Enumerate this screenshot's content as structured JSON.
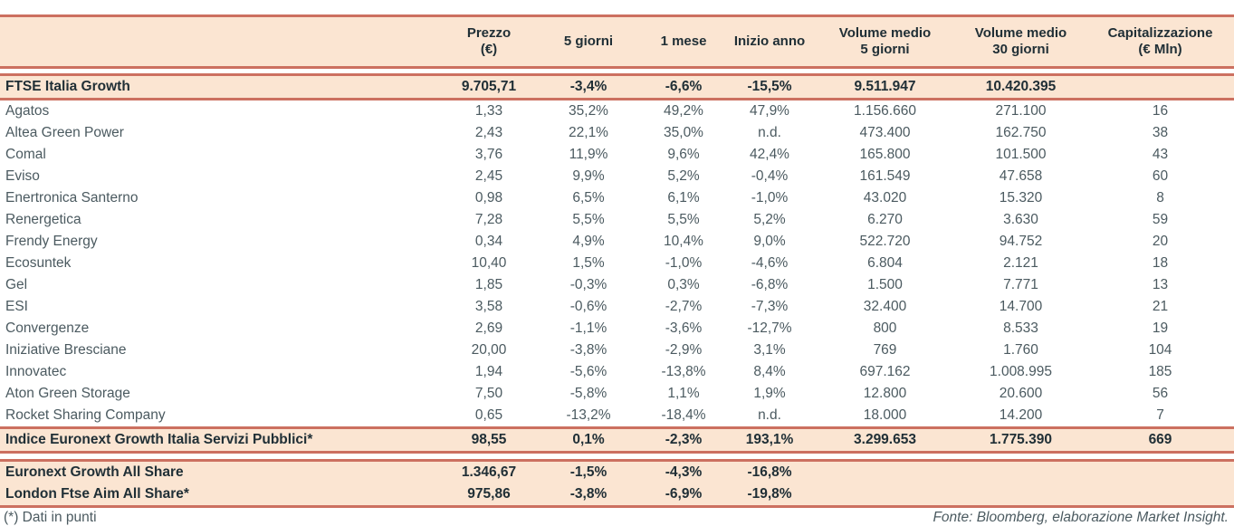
{
  "colors": {
    "accent_rule": "#cc7060",
    "band_bg": "#fbe5d2",
    "text_bold": "#202f36",
    "text_regular": "#4b5a60"
  },
  "header": {
    "columns": [
      {
        "line1": "",
        "line2": ""
      },
      {
        "line1": "Prezzo",
        "line2": "(€)"
      },
      {
        "line1": "5 giorni",
        "line2": ""
      },
      {
        "line1": "1 mese",
        "line2": ""
      },
      {
        "line1": "Inizio anno",
        "line2": ""
      },
      {
        "line1": "Volume medio",
        "line2": "5 giorni"
      },
      {
        "line1": "Volume medio",
        "line2": "30 giorni"
      },
      {
        "line1": "Capitalizzazione",
        "line2": "(€ Mln)"
      }
    ]
  },
  "index_row": {
    "cells": [
      "FTSE Italia Growth",
      "9.705,71",
      "-3,4%",
      "-6,6%",
      "-15,5%",
      "9.511.947",
      "10.420.395",
      ""
    ]
  },
  "companies": [
    {
      "cells": [
        "Agatos",
        "1,33",
        "35,2%",
        "49,2%",
        "47,9%",
        "1.156.660",
        "271.100",
        "16"
      ]
    },
    {
      "cells": [
        "Altea Green Power",
        "2,43",
        "22,1%",
        "35,0%",
        "n.d.",
        "473.400",
        "162.750",
        "38"
      ]
    },
    {
      "cells": [
        "Comal",
        "3,76",
        "11,9%",
        "9,6%",
        "42,4%",
        "165.800",
        "101.500",
        "43"
      ]
    },
    {
      "cells": [
        "Eviso",
        "2,45",
        "9,9%",
        "5,2%",
        "-0,4%",
        "161.549",
        "47.658",
        "60"
      ]
    },
    {
      "cells": [
        "Enertronica Santerno",
        "0,98",
        "6,5%",
        "6,1%",
        "-1,0%",
        "43.020",
        "15.320",
        "8"
      ]
    },
    {
      "cells": [
        "Renergetica",
        "7,28",
        "5,5%",
        "5,5%",
        "5,2%",
        "6.270",
        "3.630",
        "59"
      ]
    },
    {
      "cells": [
        "Frendy Energy",
        "0,34",
        "4,9%",
        "10,4%",
        "9,0%",
        "522.720",
        "94.752",
        "20"
      ]
    },
    {
      "cells": [
        "Ecosuntek",
        "10,40",
        "1,5%",
        "-1,0%",
        "-4,6%",
        "6.804",
        "2.121",
        "18"
      ]
    },
    {
      "cells": [
        "Gel",
        "1,85",
        "-0,3%",
        "0,3%",
        "-6,8%",
        "1.500",
        "7.771",
        "13"
      ]
    },
    {
      "cells": [
        "ESI",
        "3,58",
        "-0,6%",
        "-2,7%",
        "-7,3%",
        "32.400",
        "14.700",
        "21"
      ]
    },
    {
      "cells": [
        "Convergenze",
        "2,69",
        "-1,1%",
        "-3,6%",
        "-12,7%",
        "800",
        "8.533",
        "19"
      ]
    },
    {
      "cells": [
        "Iniziative Bresciane",
        "20,00",
        "-3,8%",
        "-2,9%",
        "3,1%",
        "769",
        "1.760",
        "104"
      ]
    },
    {
      "cells": [
        "Innovatec",
        "1,94",
        "-5,6%",
        "-13,8%",
        "8,4%",
        "697.162",
        "1.008.995",
        "185"
      ]
    },
    {
      "cells": [
        "Aton Green Storage",
        "7,50",
        "-5,8%",
        "1,1%",
        "1,9%",
        "12.800",
        "20.600",
        "56"
      ]
    },
    {
      "cells": [
        "Rocket Sharing Company",
        "0,65",
        "-13,2%",
        "-18,4%",
        "n.d.",
        "18.000",
        "14.200",
        "7"
      ]
    }
  ],
  "servizi_pubblici_row": {
    "cells": [
      "Indice Euronext Growth Italia Servizi Pubblici*",
      "98,55",
      "0,1%",
      "-2,3%",
      "193,1%",
      "3.299.653",
      "1.775.390",
      "669"
    ]
  },
  "benchmark_rows": [
    {
      "cells": [
        "Euronext Growth All Share",
        "1.346,67",
        "-1,5%",
        "-4,3%",
        "-16,8%",
        "",
        "",
        ""
      ]
    },
    {
      "cells": [
        "London Ftse Aim All Share*",
        "975,86",
        "-3,8%",
        "-6,9%",
        "-19,8%",
        "",
        "",
        ""
      ]
    }
  ],
  "footer": {
    "footnote_left": "(*) Dati in punti",
    "source_right": "Fonte: Bloomberg, elaborazione Market Insight."
  }
}
